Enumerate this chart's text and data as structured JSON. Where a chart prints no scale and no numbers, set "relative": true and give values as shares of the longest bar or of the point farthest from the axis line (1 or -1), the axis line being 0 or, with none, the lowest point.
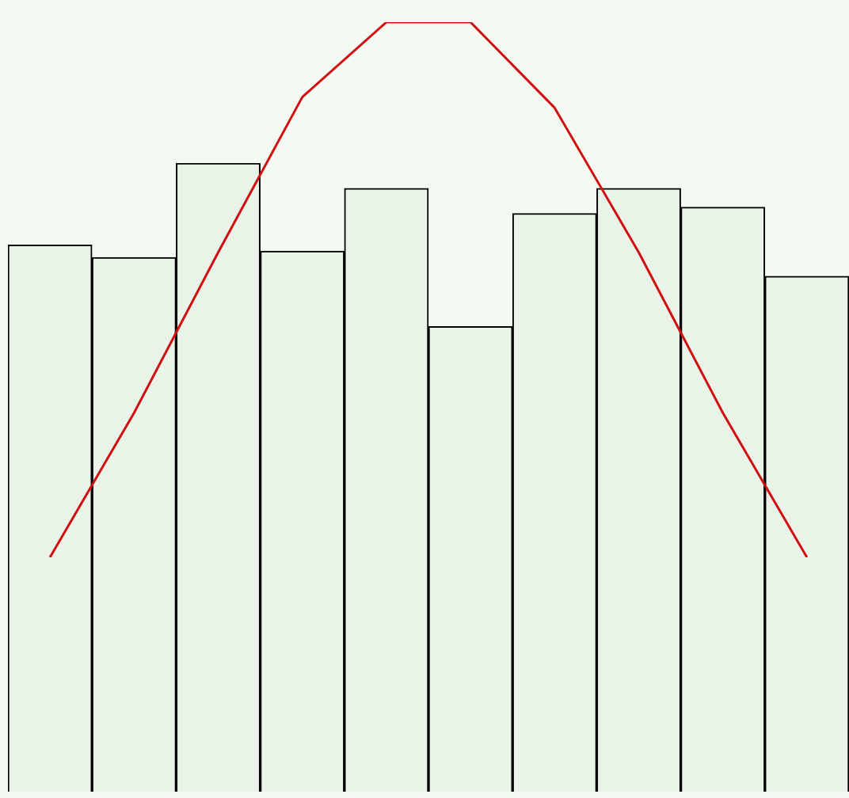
{
  "chart_data": [
    {
      "type": "bar",
      "relative": true,
      "categories": [
        null,
        null,
        null,
        null,
        null,
        null,
        null,
        null,
        null,
        null
      ],
      "series": [
        {
          "color": "#eaf3e8",
          "values": [
            0.87,
            0.85,
            1,
            0.86,
            0.96,
            0.74,
            0.92,
            0.96,
            0.93,
            0.82
          ]
        }
      ]
    },
    {
      "type": "line",
      "relative": true,
      "categories": [
        null,
        null,
        null,
        null,
        null,
        null,
        null,
        null,
        null,
        null
      ],
      "series": [
        {
          "color": "#d01010",
          "values": [
            0,
            0.27,
            0.57,
            0.86,
            1,
            1,
            0.84,
            0.57,
            0.27,
            0
          ]
        }
      ]
    }
  ]
}
